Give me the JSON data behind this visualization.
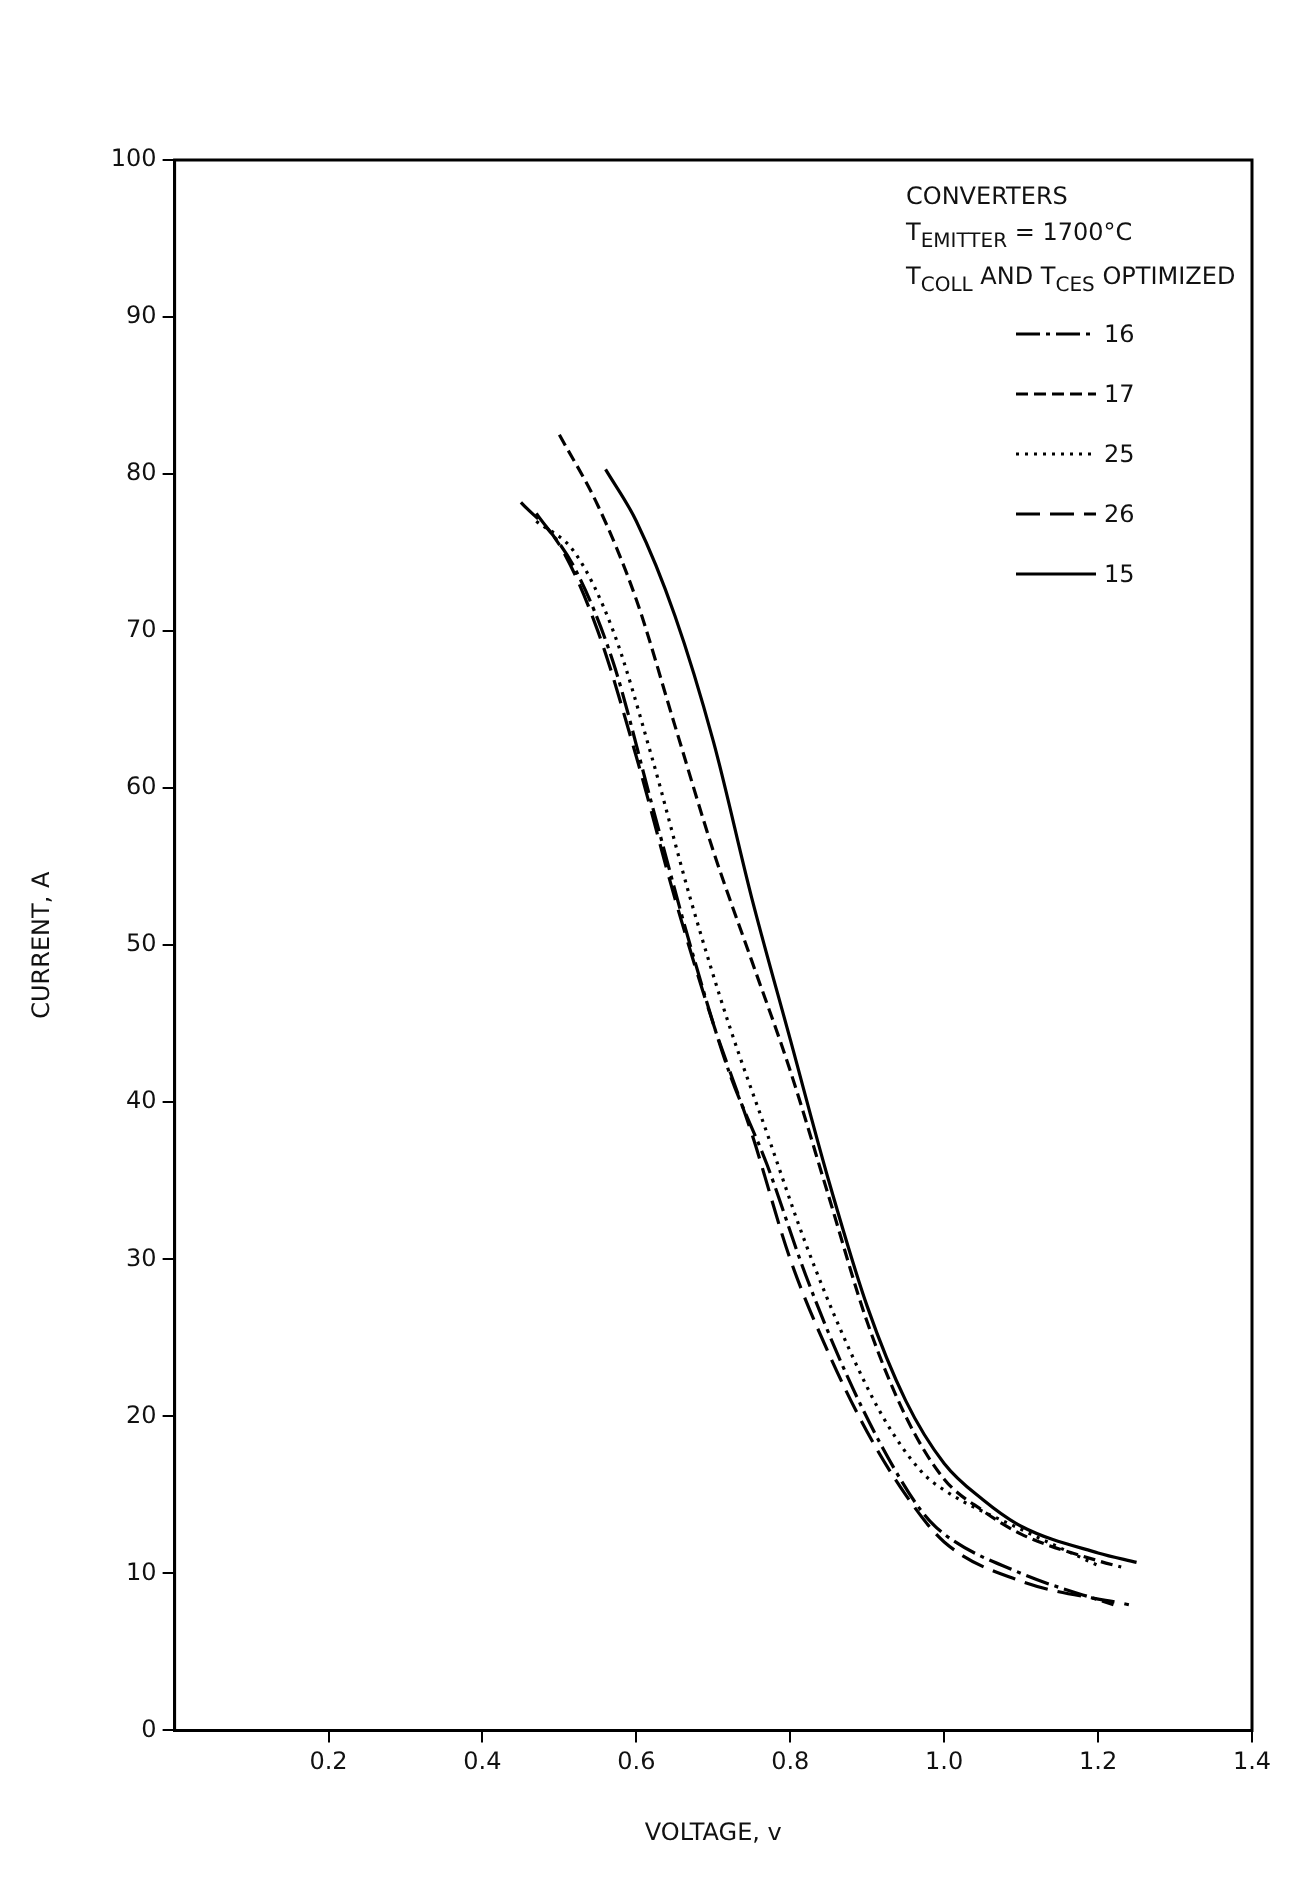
{
  "chart_data": {
    "type": "line",
    "xlabel": "VOLTAGE, v",
    "ylabel": "CURRENT, A",
    "legend_title": "CONVERTERS\nT$_{EMITTER}$ = 1700°C\nT$_{COLL}$ AND T$_{CES}$ OPTIMIZED",
    "legend": "top right",
    "grid": false,
    "marker": "none",
    "xlim": [
      0,
      1.4
    ],
    "xticks": [
      {
        "value": 0.2,
        "label": "0.2"
      },
      {
        "value": 0.4,
        "label": "0.4"
      },
      {
        "value": 0.6,
        "label": "0.6"
      },
      {
        "value": 0.8,
        "label": "0.8"
      },
      {
        "value": 1.0,
        "label": "1.0"
      },
      {
        "value": 1.2,
        "label": "1.2"
      },
      {
        "value": 1.4,
        "label": "1.4"
      }
    ],
    "ylim": [
      0,
      100
    ],
    "yticks": [
      0,
      10,
      20,
      30,
      40,
      50,
      60,
      70,
      80,
      90,
      100
    ],
    "series": [
      {
        "name": "16",
        "color": "#000000",
        "line_style": "dashdot",
        "x": [
          0.47,
          0.52,
          0.57,
          0.62,
          0.67,
          0.72,
          0.77,
          0.82,
          0.87,
          0.92,
          0.97,
          1.0,
          1.1,
          1.22
        ],
        "values": [
          77.5,
          74,
          68,
          59,
          50,
          42,
          36,
          29,
          23,
          18,
          14,
          12.5,
          10,
          8
        ]
      },
      {
        "name": "17",
        "color": "#000000",
        "line_style": "dashed",
        "x": [
          0.5,
          0.55,
          0.6,
          0.65,
          0.7,
          0.75,
          0.8,
          0.85,
          0.9,
          0.95,
          1.0,
          1.05,
          1.1,
          1.2,
          1.23
        ],
        "values": [
          82.5,
          78,
          72,
          64,
          56,
          49,
          42,
          34,
          26,
          20,
          16,
          14,
          12.5,
          10.8,
          10.4
        ]
      },
      {
        "name": "25",
        "color": "#000000",
        "line_style": "dotted",
        "x": [
          0.47,
          0.52,
          0.57,
          0.62,
          0.67,
          0.72,
          0.77,
          0.82,
          0.87,
          0.92,
          0.97,
          1.0,
          1.1,
          1.2
        ],
        "values": [
          77,
          75,
          70,
          62,
          53,
          45,
          38,
          31,
          25,
          20,
          16.5,
          15.3,
          12.8,
          10.5
        ]
      },
      {
        "name": "26",
        "color": "#000000",
        "line_style": "longdash",
        "x": [
          0.45,
          0.5,
          0.55,
          0.6,
          0.65,
          0.7,
          0.75,
          0.8,
          0.85,
          0.9,
          0.95,
          1.0,
          1.1,
          1.24
        ],
        "values": [
          78.2,
          75.5,
          70,
          62,
          53,
          45,
          38,
          30,
          24,
          19,
          15,
          12,
          9.5,
          8
        ]
      },
      {
        "name": "15",
        "color": "#000000",
        "line_style": "solid",
        "x": [
          0.56,
          0.6,
          0.65,
          0.7,
          0.75,
          0.8,
          0.85,
          0.9,
          0.95,
          1.0,
          1.05,
          1.1,
          1.2,
          1.25
        ],
        "values": [
          80.3,
          77,
          71,
          63,
          53,
          44,
          35,
          27,
          21,
          17,
          14.7,
          13,
          11.3,
          10.7
        ]
      }
    ]
  }
}
